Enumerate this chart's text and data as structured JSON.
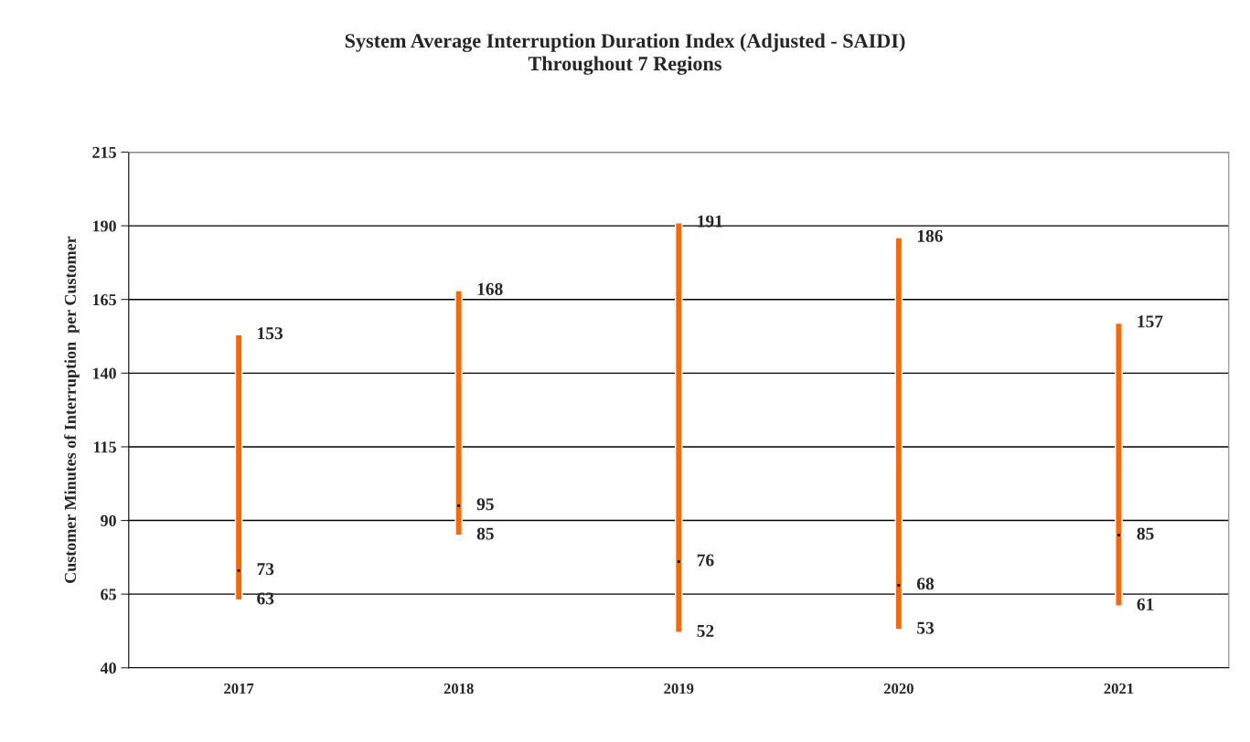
{
  "chart_data": {
    "type": "bar",
    "title": "System Average Interruption Duration Index (Adjusted - SAIDI)\nThroughout 7 Regions",
    "ylabel": "Customer Minutes of Interruption  per Customer",
    "categories": [
      "2017",
      "2018",
      "2019",
      "2020",
      "2021"
    ],
    "series": [
      {
        "color": "#ff6600",
        "values": [
          90,
          83,
          139,
          133,
          96
        ],
        "base": [
          63,
          85,
          52,
          53,
          61
        ]
      },
      {
        "type": "scatter",
        "color": "#000000",
        "marker": "square",
        "values": [
          73,
          95,
          76,
          68,
          85
        ]
      }
    ],
    "ylim": [
      40,
      215
    ],
    "yticks": [
      40,
      65,
      90,
      115,
      140,
      165,
      190,
      215
    ],
    "grid": "y",
    "annotations": [
      {
        "text": "153",
        "x": "2017",
        "y": 153
      },
      {
        "text": "73",
        "x": "2017",
        "y": 73
      },
      {
        "text": "63",
        "x": "2017",
        "y": 63
      },
      {
        "text": "168",
        "x": "2018",
        "y": 168
      },
      {
        "text": "95",
        "x": "2018",
        "y": 95
      },
      {
        "text": "85",
        "x": "2018",
        "y": 85
      },
      {
        "text": "191",
        "x": "2019",
        "y": 191
      },
      {
        "text": "76",
        "x": "2019",
        "y": 76
      },
      {
        "text": "52",
        "x": "2019",
        "y": 52
      },
      {
        "text": "186",
        "x": "2020",
        "y": 186
      },
      {
        "text": "68",
        "x": "2020",
        "y": 68
      },
      {
        "text": "53",
        "x": "2020",
        "y": 53
      },
      {
        "text": "157",
        "x": "2021",
        "y": 157
      },
      {
        "text": "85",
        "x": "2021",
        "y": 85
      },
      {
        "text": "61",
        "x": "2021",
        "y": 61
      }
    ]
  }
}
